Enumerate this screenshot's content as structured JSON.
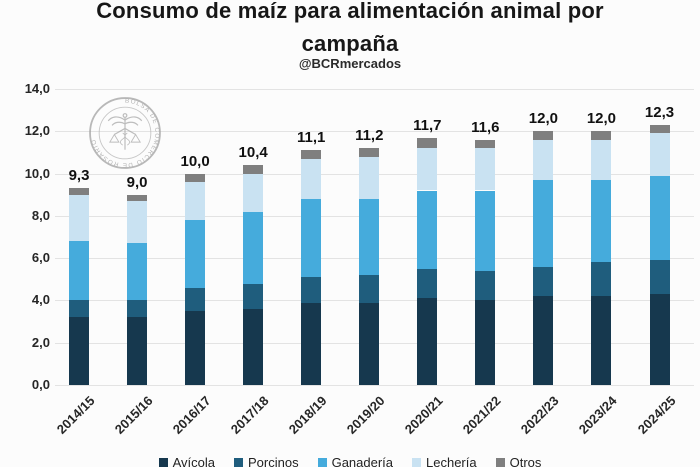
{
  "title": {
    "text": "Consumo de maíz para alimentación animal por campaña",
    "line1": "Consumo de maíz para alimentación animal por",
    "line2": "campaña"
  },
  "subtitle": "@BCRmercados",
  "watermark": {
    "ring_text": "BOLSA DE COMERCIO DE ROSARIO",
    "symbol": "caduceus-with-scales"
  },
  "colors": {
    "background": "#fcfcfc",
    "gridline": "#e3e3e3",
    "text": "#1a1a1a",
    "watermark_gray": "#9f9f9f"
  },
  "chart_data": {
    "type": "bar",
    "stacked": true,
    "title": "Consumo de maíz para alimentación animal por campaña",
    "subtitle": "@BCRmercados",
    "categories": [
      "2014/15",
      "2015/16",
      "2016/17",
      "2017/18",
      "2018/19",
      "2019/20",
      "2020/21",
      "2021/22",
      "2022/23",
      "2023/24",
      "2024/25"
    ],
    "series": [
      {
        "name": "Avícola",
        "color": "#16384e",
        "values": [
          3.2,
          3.2,
          3.5,
          3.6,
          3.9,
          3.9,
          4.1,
          4.0,
          4.2,
          4.2,
          4.3
        ]
      },
      {
        "name": "Porcinos",
        "color": "#1f5d7d",
        "values": [
          0.8,
          0.8,
          1.1,
          1.2,
          1.2,
          1.3,
          1.4,
          1.4,
          1.4,
          1.6,
          1.6
        ]
      },
      {
        "name": "Ganadería",
        "color": "#45abdc",
        "values": [
          2.8,
          2.7,
          3.2,
          3.4,
          3.7,
          3.6,
          3.7,
          3.8,
          4.1,
          3.9,
          4.0
        ]
      },
      {
        "name": "Lechería",
        "color": "#c9e2f2",
        "values": [
          2.2,
          2.0,
          1.8,
          1.8,
          1.9,
          2.0,
          2.0,
          2.0,
          1.9,
          1.9,
          2.0
        ]
      },
      {
        "name": "Otros",
        "color": "#7f7f7f",
        "values": [
          0.3,
          0.3,
          0.4,
          0.4,
          0.4,
          0.4,
          0.5,
          0.4,
          0.4,
          0.4,
          0.4
        ]
      }
    ],
    "totals": [
      9.3,
      9.0,
      10.0,
      10.4,
      11.1,
      11.2,
      11.7,
      11.6,
      12.0,
      12.0,
      12.3
    ],
    "total_labels": [
      "9,3",
      "9,0",
      "10,0",
      "10,4",
      "11,1",
      "11,2",
      "11,7",
      "11,6",
      "12,0",
      "12,0",
      "12,3"
    ],
    "xlabel": "",
    "ylabel": "",
    "ylim": [
      0,
      14
    ],
    "y_tick_values": [
      14,
      12,
      10,
      8,
      6,
      4,
      2,
      0
    ],
    "y_tick_labels": [
      "14,0",
      "12,0",
      "10,0",
      "8,0",
      "6,0",
      "4,0",
      "2,0",
      "0,0"
    ],
    "grid": true,
    "legend_position": "bottom",
    "decimal_separator": ","
  }
}
